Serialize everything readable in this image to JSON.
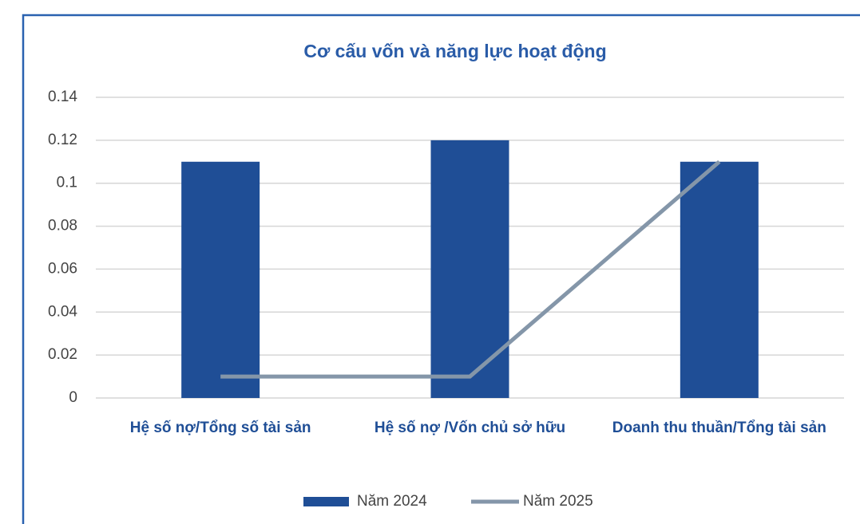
{
  "chart_data": {
    "type": "bar",
    "title": "Cơ cấu vốn và năng lực hoạt động",
    "categories": [
      "Hệ số nợ/Tổng số tài sản",
      "Hệ số nợ /Vốn chủ sở hữu",
      "Doanh thu thuần/Tổng tài sản"
    ],
    "series": [
      {
        "name": "Năm 2024",
        "type": "bar",
        "color": "#1f4e96",
        "values": [
          0.11,
          0.12,
          0.11
        ]
      },
      {
        "name": "Năm 2025",
        "type": "line",
        "color": "#8496a9",
        "values": [
          0.01,
          0.01,
          0.11
        ]
      }
    ],
    "ylim": [
      0,
      0.14
    ],
    "yticks": [
      0,
      0.02,
      0.04,
      0.06,
      0.08,
      0.1,
      0.12,
      0.14
    ],
    "grid": true,
    "legend": "bottom"
  }
}
